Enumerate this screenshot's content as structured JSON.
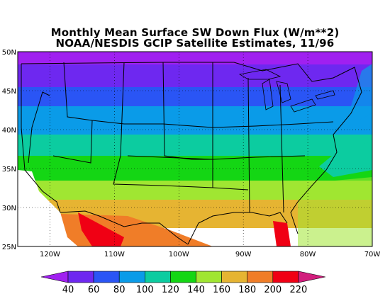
{
  "title": {
    "line1": "Monthly Mean Surface SW Down Flux (W/m**2)",
    "line2": "NOAA/NESDIS GCIP Satellite Estimates, 11/96"
  },
  "map": {
    "lat_labels": [
      "50N",
      "45N",
      "40N",
      "35N",
      "30N",
      "25N"
    ],
    "lat_values": [
      50,
      45,
      40,
      35,
      30,
      25
    ],
    "lon_labels": [
      "120W",
      "110W",
      "100W",
      "90W",
      "80W",
      "70W"
    ],
    "lon_values": [
      -120,
      -110,
      -100,
      -90,
      -80,
      -70
    ],
    "lon_range": [
      -125,
      -70
    ],
    "lat_range": [
      25,
      50
    ]
  },
  "colorbar": {
    "levels": [
      "40",
      "60",
      "80",
      "100",
      "120",
      "140",
      "160",
      "180",
      "200",
      "220"
    ],
    "colors": [
      "#a020f0",
      "#6e28f0",
      "#2a55f5",
      "#0a9be8",
      "#0ccca0",
      "#14d614",
      "#a0e632",
      "#e6b432",
      "#f07d28",
      "#f00014",
      "#d21e7d"
    ]
  }
}
